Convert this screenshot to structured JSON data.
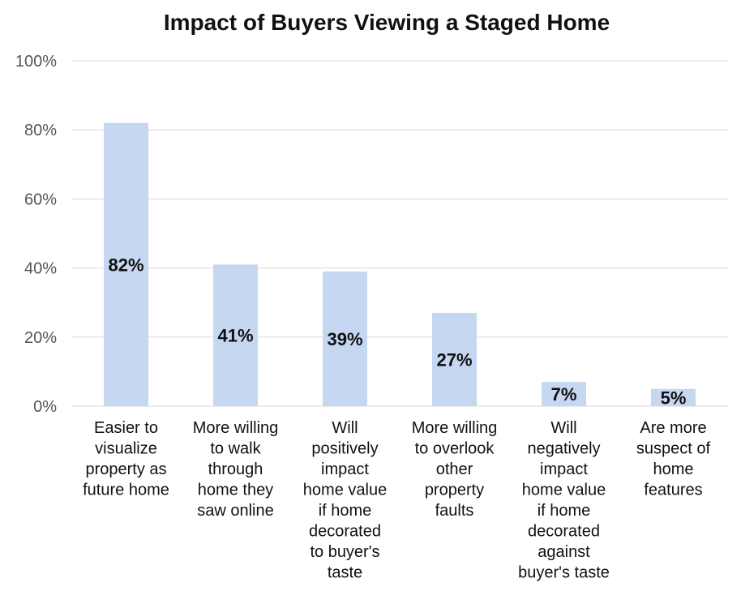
{
  "chart_data": {
    "type": "bar",
    "title": "Impact of Buyers Viewing a Staged Home",
    "xlabel": "",
    "ylabel": "",
    "ylim": [
      0,
      100
    ],
    "yticks": [
      "0%",
      "20%",
      "40%",
      "60%",
      "80%",
      "100%"
    ],
    "grid": true,
    "bar_color": "#c5d7f1",
    "categories": [
      [
        "Easier to",
        "visualize",
        "property as",
        "future home"
      ],
      [
        "More willing",
        "to walk",
        "through",
        "home they",
        "saw online"
      ],
      [
        "Will",
        "positively",
        "impact",
        "home value",
        "if home",
        "decorated",
        "to buyer's",
        "taste"
      ],
      [
        "More willing",
        "to overlook",
        "other",
        "property",
        "faults"
      ],
      [
        "Will",
        "negatively",
        "impact",
        "home value",
        "if home",
        "decorated",
        "against",
        "buyer's taste"
      ],
      [
        "Are more",
        "suspect of",
        "home",
        "features"
      ]
    ],
    "values": [
      82,
      41,
      39,
      27,
      7,
      5
    ],
    "data_labels": [
      "82%",
      "41%",
      "39%",
      "27%",
      "7%",
      "5%"
    ]
  }
}
